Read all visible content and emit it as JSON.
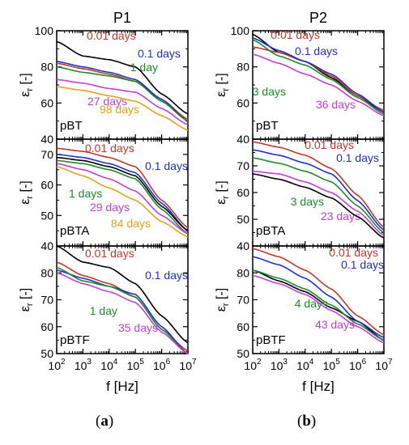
{
  "colors": {
    "red": "#c0392b",
    "blue": "#1f2fd6",
    "green": "#1d8a2b",
    "magenta": "#c23fd6",
    "orange": "#e6a21a",
    "black": "#000000"
  },
  "captions": {
    "left": "a",
    "right": "b"
  },
  "chart_data": [
    {
      "type": "line",
      "column_title": "P1",
      "panel_label": "pBT",
      "ylabel": "ε_r [-]",
      "xlabel": "f [Hz]",
      "xscale": "log",
      "xlim": [
        100,
        10000000
      ],
      "ylim": [
        40,
        100
      ],
      "yticks": [
        40,
        60,
        80,
        100
      ],
      "xticks": [
        100,
        1000,
        10000,
        100000,
        1000000,
        10000000
      ],
      "xtick_labels": [
        "10",
        "10",
        "10",
        "10",
        "10",
        "10"
      ],
      "xtick_exponents": [
        "2",
        "3",
        "4",
        "5",
        "6",
        "7"
      ],
      "x": [
        100,
        1000,
        10000,
        100000,
        1000000,
        10000000
      ],
      "series": [
        {
          "name": "",
          "color_key": "black",
          "values": [
            94,
            86,
            84,
            80,
            65,
            54
          ]
        },
        {
          "name": "0.01 days",
          "color_key": "red",
          "values": [
            82,
            79,
            76,
            72,
            62,
            51
          ]
        },
        {
          "name": "0.1 days",
          "color_key": "blue",
          "values": [
            83,
            80,
            77,
            73,
            62,
            50
          ]
        },
        {
          "name": "1 day",
          "color_key": "green",
          "values": [
            80,
            77,
            75,
            72,
            61,
            50
          ]
        },
        {
          "name": "27 days",
          "color_key": "magenta",
          "values": [
            73,
            71,
            68,
            66,
            57,
            48
          ]
        },
        {
          "name": "98 days",
          "color_key": "orange",
          "values": [
            69,
            67,
            64,
            61,
            53,
            45
          ]
        }
      ]
    },
    {
      "type": "line",
      "column_title": "",
      "panel_label": "pBTA",
      "ylabel": "ε_r [-]",
      "xlabel": "f [Hz]",
      "xscale": "log",
      "xlim": [
        100,
        10000000
      ],
      "ylim": [
        40,
        75
      ],
      "yticks": [
        40,
        50,
        60,
        70
      ],
      "xticks": [
        100,
        1000,
        10000,
        100000,
        1000000,
        10000000
      ],
      "xtick_labels": [
        "10",
        "10",
        "10",
        "10",
        "10",
        "10"
      ],
      "xtick_exponents": [
        "2",
        "3",
        "4",
        "5",
        "6",
        "7"
      ],
      "x": [
        100,
        1000,
        10000,
        100000,
        1000000,
        10000000
      ],
      "series": [
        {
          "name": "0.01 days",
          "color_key": "red",
          "values": [
            72,
            71,
            69,
            66,
            55,
            46
          ]
        },
        {
          "name": "0.1 days",
          "color_key": "blue",
          "values": [
            70,
            69,
            67,
            64,
            54,
            45
          ]
        },
        {
          "name": "",
          "color_key": "black",
          "values": [
            69,
            68,
            66,
            63,
            53,
            45
          ]
        },
        {
          "name": "1 days",
          "color_key": "green",
          "values": [
            68,
            67,
            65,
            62,
            52,
            44
          ]
        },
        {
          "name": "29 days",
          "color_key": "magenta",
          "values": [
            67,
            65,
            62,
            58,
            50,
            44
          ]
        },
        {
          "name": "84 days",
          "color_key": "orange",
          "values": [
            66,
            63,
            59,
            55,
            48,
            43
          ]
        }
      ]
    },
    {
      "type": "line",
      "column_title": "",
      "panel_label": "pBTF",
      "ylabel": "ε_r [-]",
      "xlabel": "f [Hz]",
      "xscale": "log",
      "xlim": [
        100,
        10000000
      ],
      "ylim": [
        50,
        90
      ],
      "yticks": [
        50,
        60,
        70,
        80
      ],
      "xticks": [
        100,
        1000,
        10000,
        100000,
        1000000,
        10000000
      ],
      "xtick_labels": [
        "10",
        "10",
        "10",
        "10",
        "10",
        "10"
      ],
      "xtick_exponents": [
        "2",
        "3",
        "4",
        "5",
        "6",
        "7"
      ],
      "x": [
        100,
        1000,
        10000,
        100000,
        1000000,
        10000000
      ],
      "series": [
        {
          "name": "",
          "color_key": "black",
          "values": [
            90,
            84,
            82,
            76,
            64,
            54
          ]
        },
        {
          "name": "0.01 days",
          "color_key": "red",
          "values": [
            84,
            79,
            76,
            71,
            59,
            51
          ]
        },
        {
          "name": "0.1 days",
          "color_key": "blue",
          "values": [
            81,
            78,
            75,
            72,
            60,
            50
          ]
        },
        {
          "name": "1 day",
          "color_key": "green",
          "values": [
            82,
            77,
            75,
            71,
            59,
            50
          ]
        },
        {
          "name": "35 days",
          "color_key": "magenta",
          "values": [
            80,
            76,
            73,
            69,
            58,
            50
          ]
        }
      ]
    },
    {
      "type": "line",
      "column_title": "P2",
      "panel_label": "pBT",
      "ylabel": "ε_r [-]",
      "xlabel": "f [Hz]",
      "xscale": "log",
      "xlim": [
        100,
        10000000
      ],
      "ylim": [
        40,
        100
      ],
      "yticks": [
        40,
        60,
        80,
        100
      ],
      "xticks": [
        100,
        1000,
        10000,
        100000,
        1000000,
        10000000
      ],
      "xtick_labels": [
        "10",
        "10",
        "10",
        "10",
        "10",
        "10"
      ],
      "xtick_exponents": [
        "2",
        "3",
        "4",
        "5",
        "6",
        "7"
      ],
      "x": [
        100,
        1000,
        10000,
        100000,
        1000000,
        10000000
      ],
      "series": [
        {
          "name": "",
          "color_key": "black",
          "values": [
            98,
            88,
            83,
            74,
            64,
            55
          ]
        },
        {
          "name": "0.01 days",
          "color_key": "red",
          "values": [
            91,
            88,
            83,
            75,
            64,
            56
          ]
        },
        {
          "name": "0.1 days",
          "color_key": "blue",
          "values": [
            96,
            89,
            83,
            76,
            65,
            55
          ]
        },
        {
          "name": "3 days",
          "color_key": "green",
          "values": [
            95,
            86,
            81,
            73,
            63,
            54
          ]
        },
        {
          "name": "36 days",
          "color_key": "magenta",
          "values": [
            87,
            82,
            76,
            70,
            61,
            53
          ]
        }
      ]
    },
    {
      "type": "line",
      "column_title": "",
      "panel_label": "pBTA",
      "ylabel": "ε_r [-]",
      "xlabel": "f [Hz]",
      "xscale": "log",
      "xlim": [
        100,
        10000000
      ],
      "ylim": [
        40,
        80
      ],
      "yticks": [
        40,
        50,
        60,
        70,
        80
      ],
      "xticks": [
        100,
        1000,
        10000,
        100000,
        1000000,
        10000000
      ],
      "xtick_labels": [
        "10",
        "10",
        "10",
        "10",
        "10",
        "10"
      ],
      "xtick_exponents": [
        "2",
        "3",
        "4",
        "5",
        "6",
        "7"
      ],
      "x": [
        100,
        1000,
        10000,
        100000,
        1000000,
        10000000
      ],
      "series": [
        {
          "name": "0.01 days",
          "color_key": "red",
          "values": [
            79,
            77,
            74,
            69,
            59,
            47
          ]
        },
        {
          "name": "0.1 days",
          "color_key": "blue",
          "values": [
            76,
            74,
            71,
            67,
            57,
            46
          ]
        },
        {
          "name": "3 days",
          "color_key": "green",
          "values": [
            73,
            71,
            68,
            64,
            55,
            45
          ]
        },
        {
          "name": "23 days",
          "color_key": "magenta",
          "values": [
            68,
            67,
            64,
            60,
            53,
            44
          ]
        },
        {
          "name": "",
          "color_key": "black",
          "values": [
            67,
            65,
            62,
            58,
            51,
            43
          ]
        }
      ]
    },
    {
      "type": "line",
      "column_title": "",
      "panel_label": "pBTF",
      "ylabel": "ε_r [-]",
      "xlabel": "f [Hz]",
      "xscale": "log",
      "xlim": [
        100,
        10000000
      ],
      "ylim": [
        50,
        90
      ],
      "yticks": [
        50,
        60,
        70,
        80
      ],
      "xticks": [
        100,
        1000,
        10000,
        100000,
        1000000,
        10000000
      ],
      "xtick_labels": [
        "10",
        "10",
        "10",
        "10",
        "10",
        "10"
      ],
      "xtick_exponents": [
        "2",
        "3",
        "4",
        "5",
        "6",
        "7"
      ],
      "x": [
        100,
        1000,
        10000,
        100000,
        1000000,
        10000000
      ],
      "series": [
        {
          "name": "",
          "color_key": "black",
          "values": [
            81,
            77,
            73,
            67,
            62,
            55
          ]
        },
        {
          "name": "0.01 days",
          "color_key": "red",
          "values": [
            89,
            86,
            81,
            74,
            64,
            57
          ]
        },
        {
          "name": "0.1 days",
          "color_key": "blue",
          "values": [
            86,
            83,
            78,
            71,
            62,
            56
          ]
        },
        {
          "name": "4 days",
          "color_key": "green",
          "values": [
            81,
            78,
            74,
            68,
            61,
            55
          ]
        },
        {
          "name": "43 days",
          "color_key": "magenta",
          "values": [
            79,
            76,
            72,
            66,
            60,
            54
          ]
        }
      ]
    }
  ]
}
